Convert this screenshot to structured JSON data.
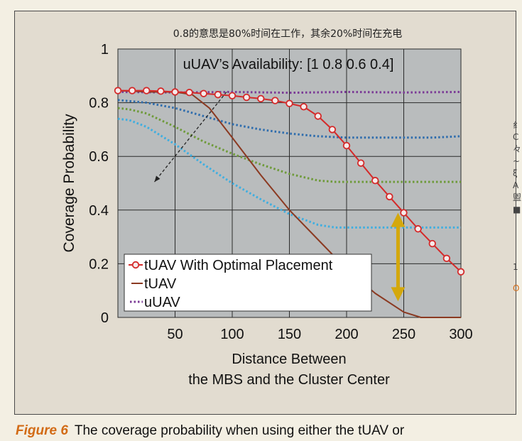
{
  "annotation": "0.8的意思是80%时间在工作，其余20%时间在充电",
  "caption": {
    "label": "Figure 6",
    "text": "The coverage probability when using either the tUAV or"
  },
  "edge_fragments": [
    "纟",
    "C",
    "々",
    "~",
    "ξ",
    "A",
    "盥",
    "■",
    "1",
    "O"
  ],
  "chart_data": {
    "type": "line",
    "title": "",
    "annotation_text": "uUAV’s Availability: [1 0.8 0.6 0.4]",
    "xlabel": [
      "Distance Between",
      "the MBS and the Cluster Center"
    ],
    "ylabel": "Coverage Probability",
    "xlim": [
      0,
      300
    ],
    "ylim": [
      0,
      1
    ],
    "xticks": [
      50,
      100,
      150,
      200,
      250,
      300
    ],
    "yticks": [
      0,
      0.2,
      0.4,
      0.6,
      0.8,
      1
    ],
    "ytick_labels": [
      "0",
      "0.2",
      "0.4",
      "0.6",
      "0.8",
      "1"
    ],
    "grid": true,
    "legend_position": "bottom-left",
    "legend": [
      {
        "label": "tUAV With Optimal Placement",
        "style": "marker-line",
        "color": "#d42a2a"
      },
      {
        "label": "tUAV",
        "style": "line",
        "color": "#8b3a22"
      },
      {
        "label": "uUAV",
        "style": "dotted",
        "color": "#7b3a96"
      }
    ],
    "series": [
      {
        "name": "tUAV With Optimal Placement",
        "style": "marker-line",
        "color": "#d42a2a",
        "x": [
          0,
          12.5,
          25,
          37.5,
          50,
          62.5,
          75,
          87.5,
          100,
          112.5,
          125,
          137.5,
          150,
          162.5,
          175,
          187.5,
          200,
          212.5,
          225,
          237.5,
          250,
          262.5,
          275,
          287.5,
          300
        ],
        "y": [
          0.845,
          0.845,
          0.845,
          0.843,
          0.84,
          0.838,
          0.834,
          0.83,
          0.826,
          0.82,
          0.815,
          0.808,
          0.797,
          0.785,
          0.75,
          0.7,
          0.64,
          0.575,
          0.51,
          0.45,
          0.39,
          0.33,
          0.275,
          0.22,
          0.17
        ]
      },
      {
        "style": "line",
        "color": "#8b3a22",
        "x": [
          0,
          30,
          50,
          65,
          80,
          100,
          125,
          150,
          175,
          200,
          225,
          250,
          265,
          300
        ],
        "y": [
          0.845,
          0.84,
          0.84,
          0.83,
          0.78,
          0.67,
          0.53,
          0.4,
          0.29,
          0.18,
          0.09,
          0.02,
          0,
          0
        ]
      },
      {
        "style": "dotted",
        "color": "#7b3a96",
        "x": [
          0,
          50,
          100,
          150,
          200,
          250,
          300
        ],
        "y": [
          0.84,
          0.838,
          0.84,
          0.837,
          0.84,
          0.838,
          0.84
        ]
      },
      {
        "style": "dotted",
        "color": "#2f6dad",
        "x": [
          0,
          25,
          50,
          75,
          100,
          125,
          150,
          175,
          200,
          225,
          250,
          275,
          300
        ],
        "y": [
          0.81,
          0.8,
          0.78,
          0.75,
          0.72,
          0.7,
          0.685,
          0.675,
          0.67,
          0.67,
          0.67,
          0.67,
          0.675
        ]
      },
      {
        "style": "dotted",
        "color": "#6e9a3a",
        "x": [
          0,
          10,
          25,
          50,
          75,
          100,
          125,
          150,
          175,
          190,
          225,
          250,
          275,
          300
        ],
        "y": [
          0.78,
          0.775,
          0.76,
          0.71,
          0.655,
          0.61,
          0.57,
          0.535,
          0.51,
          0.505,
          0.505,
          0.505,
          0.505,
          0.505
        ]
      },
      {
        "style": "dotted",
        "color": "#3eaee0",
        "x": [
          0,
          10,
          25,
          50,
          75,
          100,
          125,
          150,
          175,
          190,
          225,
          250,
          275,
          300
        ],
        "y": [
          0.74,
          0.735,
          0.71,
          0.645,
          0.57,
          0.5,
          0.44,
          0.385,
          0.345,
          0.335,
          0.335,
          0.335,
          0.335,
          0.335
        ]
      }
    ],
    "arrows": [
      {
        "type": "dashed",
        "from": [
          95,
          0.84
        ],
        "to": [
          32,
          0.505
        ],
        "color": "#222"
      },
      {
        "type": "double",
        "x": 245,
        "from": 0.39,
        "to": 0.06,
        "color": "#d4a80c"
      }
    ]
  }
}
